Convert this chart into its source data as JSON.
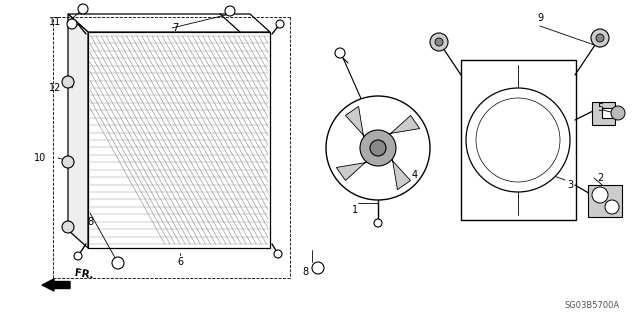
{
  "bg_color": "#ffffff",
  "line_color": "#000000",
  "fig_width": 6.4,
  "fig_height": 3.19,
  "dpi": 100,
  "diagram_code": "SG03B5700A"
}
